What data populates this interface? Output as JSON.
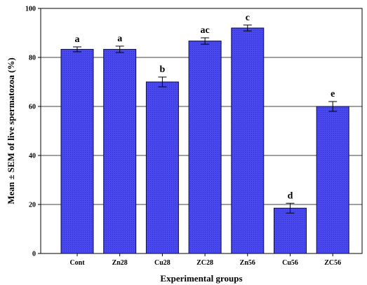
{
  "chart_data": {
    "type": "bar",
    "xlabel": "Experimental groups",
    "ylabel": "Mean ± SEM of live spermatozoa (%)",
    "ylim": [
      0,
      100
    ],
    "yticks": [
      "0",
      "20",
      "40",
      "60",
      "80",
      "100"
    ],
    "grid": true,
    "categories": [
      "Cont",
      "Zn28",
      "Cu28",
      "ZC28",
      "Zn56",
      "Cu56",
      "ZC56"
    ],
    "values": [
      83.3,
      83.3,
      70.0,
      86.7,
      92.0,
      18.5,
      60.0
    ],
    "errors": [
      1.0,
      1.3,
      2.0,
      1.3,
      1.2,
      2.0,
      2.0
    ],
    "significance_letters": [
      "a",
      "a",
      "b",
      "ac",
      "c",
      "d",
      "e"
    ],
    "colors": {
      "bar_fill": "#4848ee",
      "bar_stroke": "#0d0d4a",
      "background": "#ffffff"
    }
  }
}
